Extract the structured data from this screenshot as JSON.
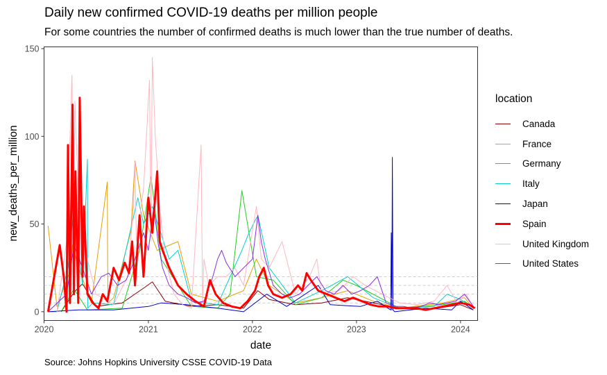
{
  "chart_data": {
    "type": "line",
    "title": "Daily new confirmed COVID-19 deaths per million people",
    "subtitle": "For some countries the number of confirmed deaths is much lower than the true number of deaths.",
    "caption": "Source: Johns Hopkins University CSSE COVID-19 Data",
    "xlabel": "date",
    "ylabel": "new_deaths_per_million",
    "xlim": [
      "2020-01-01",
      "2024-03-01"
    ],
    "ylim": [
      -5,
      151
    ],
    "x_ticks": [
      "2020",
      "2021",
      "2022",
      "2023",
      "2024"
    ],
    "y_ticks": [
      0,
      50,
      100,
      150
    ],
    "reference_lines": [
      5,
      10,
      15,
      20
    ],
    "grid": false,
    "legend_title": "location",
    "legend_position": "right",
    "series": [
      {
        "name": "Canada",
        "color": "#8B0000",
        "width": 1,
        "x": [
          "2020-03-01",
          "2020-04-15",
          "2020-05-15",
          "2020-07-01",
          "2020-10-01",
          "2020-12-20",
          "2021-01-15",
          "2021-03-01",
          "2021-06-01",
          "2021-09-01",
          "2021-12-01",
          "2022-01-20",
          "2022-03-01",
          "2022-06-01",
          "2022-09-01",
          "2022-12-01",
          "2023-03-01",
          "2023-06-01",
          "2023-09-01",
          "2024-01-01",
          "2024-02-15"
        ],
        "y": [
          0,
          11,
          16,
          3,
          5,
          14,
          17,
          6,
          3,
          4,
          2,
          12,
          7,
          4,
          5,
          8,
          5,
          2,
          1,
          4,
          1
        ]
      },
      {
        "name": "France",
        "color": "#E69F00",
        "width": 1,
        "x": [
          "2020-01-15",
          "2020-02-15",
          "2020-04-01",
          "2020-04-10",
          "2020-05-01",
          "2020-06-15",
          "2020-08-10",
          "2020-08-12",
          "2020-09-01",
          "2020-11-01",
          "2020-11-15",
          "2020-12-15",
          "2021-02-01",
          "2021-04-15",
          "2021-06-01",
          "2021-09-01",
          "2021-12-01",
          "2022-01-15",
          "2022-03-01",
          "2022-06-01",
          "2022-09-01",
          "2022-12-01",
          "2023-03-01",
          "2023-06-01",
          "2023-11-01",
          "2024-01-15",
          "2024-02-15"
        ],
        "y": [
          49,
          3,
          23,
          38,
          25,
          5,
          74,
          5,
          8,
          46,
          86,
          55,
          35,
          40,
          10,
          6,
          12,
          30,
          15,
          5,
          8,
          12,
          6,
          2,
          5,
          8,
          2
        ]
      },
      {
        "name": "Germany",
        "color": "#22CC22",
        "width": 1,
        "x": [
          "2020-03-01",
          "2020-04-15",
          "2020-06-01",
          "2020-10-01",
          "2020-12-01",
          "2020-12-25",
          "2021-01-10",
          "2021-02-15",
          "2021-04-15",
          "2021-06-01",
          "2021-09-01",
          "2021-10-15",
          "2021-11-25",
          "2022-01-15",
          "2022-03-15",
          "2022-06-01",
          "2022-09-01",
          "2022-11-15",
          "2023-01-01",
          "2023-06-01",
          "2023-11-01",
          "2024-01-15",
          "2024-02-15"
        ],
        "y": [
          0,
          13,
          1,
          2,
          35,
          60,
          77,
          30,
          15,
          3,
          2,
          10,
          69,
          20,
          18,
          4,
          8,
          18,
          15,
          2,
          4,
          6,
          2
        ]
      },
      {
        "name": "Italy",
        "color": "#00D0D0",
        "width": 1,
        "x": [
          "2020-01-15",
          "2020-02-15",
          "2020-03-25",
          "2020-04-15",
          "2020-05-15",
          "2020-06-01",
          "2020-06-02",
          "2020-06-20",
          "2020-09-01",
          "2020-11-25",
          "2020-12-15",
          "2021-01-15",
          "2021-03-15",
          "2021-04-15",
          "2021-06-01",
          "2021-09-01",
          "2021-11-25",
          "2021-12-20",
          "2022-01-20",
          "2022-03-01",
          "2022-06-01",
          "2022-09-01",
          "2022-12-01",
          "2023-03-01",
          "2023-06-01",
          "2023-10-01",
          "2023-11-15",
          "2024-01-01",
          "2024-02-15"
        ],
        "y": [
          0,
          0,
          25,
          60,
          15,
          87,
          2,
          5,
          4,
          65,
          50,
          60,
          30,
          35,
          6,
          4,
          35,
          45,
          55,
          25,
          5,
          12,
          20,
          8,
          2,
          3,
          10,
          7,
          2
        ]
      },
      {
        "name": "Japan",
        "color": "#0000CD",
        "width": 1,
        "x": [
          "2020-01-15",
          "2020-05-01",
          "2020-09-01",
          "2021-01-01",
          "2021-02-15",
          "2021-05-15",
          "2021-09-01",
          "2021-12-01",
          "2022-02-20",
          "2022-05-01",
          "2022-08-20",
          "2022-10-01",
          "2023-01-15",
          "2023-03-15",
          "2023-05-01",
          "2023-05-03",
          "2023-05-05",
          "2023-05-07",
          "2023-05-09",
          "2023-05-15",
          "2023-09-01",
          "2023-12-01",
          "2024-01-01",
          "2024-02-15"
        ],
        "y": [
          0,
          1,
          1,
          3,
          5,
          4,
          2,
          0,
          10,
          3,
          15,
          4,
          3,
          6,
          1,
          45,
          1,
          88,
          1,
          0,
          2,
          1,
          6,
          1
        ]
      },
      {
        "name": "Spain",
        "color": "#FF0000",
        "width": 3,
        "x": [
          "2020-01-15",
          "2020-02-25",
          "2020-03-10",
          "2020-03-20",
          "2020-03-25",
          "2020-04-01",
          "2020-04-10",
          "2020-04-15",
          "2020-04-20",
          "2020-04-30",
          "2020-05-05",
          "2020-05-15",
          "2020-05-20",
          "2020-06-01",
          "2020-06-20",
          "2020-07-10",
          "2020-07-25",
          "2020-08-10",
          "2020-09-01",
          "2020-09-20",
          "2020-10-10",
          "2020-10-25",
          "2020-11-05",
          "2020-11-15",
          "2020-12-01",
          "2020-12-15",
          "2021-01-01",
          "2021-01-15",
          "2021-02-01",
          "2021-02-10",
          "2021-02-20",
          "2021-03-15",
          "2021-04-15",
          "2021-05-15",
          "2021-06-15",
          "2021-07-15",
          "2021-08-05",
          "2021-08-25",
          "2021-09-20",
          "2021-10-20",
          "2021-11-20",
          "2021-12-15",
          "2022-01-10",
          "2022-01-25",
          "2022-02-10",
          "2022-02-25",
          "2022-03-15",
          "2022-04-15",
          "2022-05-15",
          "2022-06-10",
          "2022-06-25",
          "2022-07-10",
          "2022-07-25",
          "2022-08-20",
          "2022-09-20",
          "2022-10-20",
          "2022-11-20",
          "2022-12-20",
          "2023-01-20",
          "2023-02-20",
          "2023-03-20",
          "2023-04-20",
          "2023-05-20",
          "2023-06-20",
          "2023-08-01",
          "2023-09-01",
          "2023-10-01",
          "2023-11-01",
          "2023-12-01",
          "2024-01-01",
          "2024-02-01",
          "2024-02-20"
        ],
        "y": [
          0,
          38,
          20,
          0,
          95,
          5,
          118,
          10,
          80,
          5,
          122,
          20,
          60,
          10,
          5,
          2,
          10,
          6,
          25,
          18,
          28,
          22,
          40,
          15,
          55,
          20,
          65,
          45,
          80,
          40,
          35,
          25,
          15,
          10,
          6,
          3,
          18,
          10,
          5,
          3,
          2,
          6,
          12,
          20,
          25,
          15,
          10,
          8,
          10,
          15,
          12,
          22,
          18,
          12,
          10,
          8,
          6,
          8,
          6,
          4,
          3,
          3,
          2,
          2,
          2,
          1,
          2,
          3,
          4,
          5,
          4,
          2
        ]
      },
      {
        "name": "United Kingdom",
        "color": "#FFB6C1",
        "width": 1,
        "x": [
          "2020-02-15",
          "2020-03-20",
          "2020-04-01",
          "2020-04-08",
          "2020-04-12",
          "2020-04-18",
          "2020-04-30",
          "2020-05-10",
          "2020-06-01",
          "2020-07-01",
          "2020-09-01",
          "2020-10-20",
          "2020-11-10",
          "2020-11-15",
          "2020-11-20",
          "2020-12-15",
          "2021-01-05",
          "2021-01-10",
          "2021-01-15",
          "2021-01-25",
          "2021-02-10",
          "2021-03-01",
          "2021-04-01",
          "2021-05-01",
          "2021-06-01",
          "2021-07-05",
          "2021-07-10",
          "2021-07-15",
          "2021-08-01",
          "2021-09-01",
          "2021-10-01",
          "2021-11-01",
          "2021-12-01",
          "2022-01-15",
          "2022-02-01",
          "2022-03-01",
          "2022-04-15",
          "2022-06-01",
          "2022-07-20",
          "2022-08-15",
          "2022-09-01",
          "2022-11-01",
          "2022-12-20",
          "2023-02-01",
          "2023-04-01",
          "2023-06-01",
          "2023-08-01",
          "2023-10-01",
          "2023-11-15",
          "2023-12-20",
          "2024-01-20",
          "2024-02-15"
        ],
        "y": [
          0,
          40,
          100,
          135,
          60,
          120,
          70,
          50,
          30,
          10,
          4,
          20,
          60,
          85,
          40,
          70,
          132,
          40,
          145,
          100,
          60,
          30,
          10,
          4,
          2,
          95,
          5,
          30,
          15,
          20,
          20,
          25,
          15,
          60,
          30,
          25,
          40,
          10,
          20,
          30,
          10,
          12,
          20,
          15,
          10,
          5,
          4,
          6,
          15,
          5,
          10,
          3
        ]
      },
      {
        "name": "United States",
        "color": "#8A2BE2",
        "width": 1,
        "x": [
          "2020-01-15",
          "2020-03-20",
          "2020-04-15",
          "2020-05-15",
          "2020-06-15",
          "2020-07-20",
          "2020-08-15",
          "2020-09-15",
          "2020-10-15",
          "2020-11-15",
          "2020-12-15",
          "2021-01-01",
          "2021-01-20",
          "2021-02-05",
          "2021-02-20",
          "2021-03-15",
          "2021-04-15",
          "2021-05-15",
          "2021-06-15",
          "2021-07-15",
          "2021-08-15",
          "2021-09-01",
          "2021-09-15",
          "2021-10-01",
          "2021-11-01",
          "2021-12-01",
          "2022-01-01",
          "2022-01-20",
          "2022-02-01",
          "2022-02-15",
          "2022-03-15",
          "2022-04-15",
          "2022-05-15",
          "2022-06-15",
          "2022-07-15",
          "2022-08-15",
          "2022-09-15",
          "2022-10-15",
          "2022-11-15",
          "2022-12-15",
          "2023-01-15",
          "2023-02-15",
          "2023-03-15",
          "2023-04-15",
          "2023-05-15",
          "2023-06-15",
          "2023-07-15",
          "2023-08-15",
          "2023-09-15",
          "2023-10-15",
          "2023-11-15",
          "2023-12-15",
          "2024-01-15",
          "2024-02-15"
        ],
        "y": [
          0,
          10,
          38,
          25,
          10,
          20,
          22,
          15,
          18,
          30,
          45,
          35,
          60,
          38,
          25,
          15,
          10,
          8,
          5,
          6,
          20,
          30,
          35,
          28,
          20,
          25,
          30,
          55,
          40,
          30,
          15,
          10,
          8,
          10,
          15,
          20,
          12,
          10,
          15,
          10,
          12,
          15,
          20,
          5,
          3,
          3,
          2,
          3,
          5,
          4,
          5,
          6,
          10,
          3
        ]
      }
    ]
  }
}
